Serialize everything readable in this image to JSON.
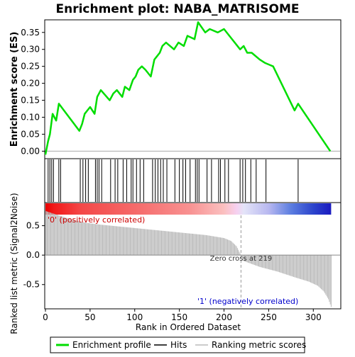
{
  "title": "Enrichment plot: NABA_MATRISOME",
  "colors": {
    "es_line": "#00dd00",
    "hits": "#000000",
    "metric_fill": "#bbbbbb",
    "zero_cross_line": "#999999",
    "pos_label": "#cc0000",
    "neg_label": "#0000cc"
  },
  "chart_data": [
    {
      "type": "line",
      "panel": "enrichment-profile",
      "ylabel": "Enrichment score (ES)",
      "xlim": [
        0,
        330
      ],
      "ylim": [
        -0.02,
        0.385
      ],
      "yticks": [
        0.0,
        0.05,
        0.1,
        0.15,
        0.2,
        0.25,
        0.3,
        0.35
      ],
      "ytick_labels": [
        "0.00",
        "0.05",
        "0.10",
        "0.15",
        "0.20",
        "0.25",
        "0.30",
        "0.35"
      ],
      "grid": false,
      "series": [
        {
          "name": "Enrichment profile",
          "x": [
            0,
            3,
            5,
            8,
            12,
            15,
            38,
            41,
            44,
            47,
            50,
            55,
            58,
            62,
            72,
            76,
            80,
            86,
            89,
            94,
            98,
            101,
            104,
            108,
            112,
            118,
            122,
            125,
            128,
            131,
            135,
            144,
            149,
            155,
            159,
            167,
            171,
            179,
            184,
            193,
            200,
            206,
            218,
            222,
            226,
            231,
            240,
            246,
            255,
            279,
            283,
            319
          ],
          "y": [
            -0.01,
            0.03,
            0.05,
            0.11,
            0.09,
            0.14,
            0.06,
            0.08,
            0.11,
            0.12,
            0.13,
            0.11,
            0.16,
            0.18,
            0.15,
            0.17,
            0.18,
            0.16,
            0.19,
            0.18,
            0.21,
            0.22,
            0.24,
            0.25,
            0.24,
            0.22,
            0.27,
            0.28,
            0.29,
            0.31,
            0.32,
            0.3,
            0.32,
            0.31,
            0.34,
            0.33,
            0.38,
            0.35,
            0.36,
            0.35,
            0.36,
            0.34,
            0.3,
            0.31,
            0.29,
            0.29,
            0.27,
            0.26,
            0.25,
            0.12,
            0.14,
            0.0
          ]
        }
      ]
    },
    {
      "type": "scatter",
      "panel": "hits",
      "xlim": [
        0,
        330
      ],
      "series": [
        {
          "name": "Hits",
          "x": [
            3,
            5,
            7,
            9,
            15,
            17,
            39,
            42,
            45,
            48,
            56,
            58,
            60,
            63,
            73,
            78,
            81,
            87,
            91,
            96,
            98,
            102,
            106,
            110,
            120,
            123,
            126,
            129,
            132,
            136,
            145,
            150,
            154,
            157,
            162,
            168,
            170,
            172,
            181,
            186,
            194,
            196,
            201,
            205,
            218,
            221,
            224,
            230,
            236,
            247,
            283
          ]
        }
      ]
    },
    {
      "type": "area",
      "panel": "ranked-list",
      "xlabel": "Rank in Ordered Dataset",
      "ylabel": "Ranked list metric (Signal2Noise)",
      "xlim": [
        0,
        330
      ],
      "ylim": [
        -0.9,
        0.88
      ],
      "xticks": [
        0,
        50,
        100,
        150,
        200,
        250,
        300
      ],
      "yticks": [
        -0.5,
        0.0,
        0.5
      ],
      "ytick_labels": [
        "-0.5",
        "0.0",
        "0.5"
      ],
      "series": [
        {
          "name": "Ranking metric scores",
          "x": [
            0,
            10,
            20,
            30,
            45,
            60,
            80,
            100,
            120,
            140,
            160,
            180,
            200,
            208,
            214,
            219,
            222,
            240,
            260,
            280,
            295,
            305,
            312,
            317,
            320
          ],
          "y": [
            0.75,
            0.7,
            0.65,
            0.6,
            0.55,
            0.52,
            0.49,
            0.46,
            0.43,
            0.4,
            0.37,
            0.34,
            0.29,
            0.24,
            0.15,
            0.0,
            -0.1,
            -0.2,
            -0.28,
            -0.38,
            -0.45,
            -0.52,
            -0.62,
            -0.75,
            -0.88
          ]
        }
      ],
      "annotations": {
        "zero_cross_rank": 219,
        "zero_cross_label": "Zero cross at 219",
        "positive_label": "'0' (positively correlated)",
        "negative_label": "'1' (negatively correlated)"
      },
      "heatmap_stops": [
        {
          "x": 0,
          "color": "#e80000"
        },
        {
          "x": 10,
          "color": "#f21a1a"
        },
        {
          "x": 40,
          "color": "#f44848"
        },
        {
          "x": 100,
          "color": "#f56a6a"
        },
        {
          "x": 160,
          "color": "#f89090"
        },
        {
          "x": 200,
          "color": "#fbc0c0"
        },
        {
          "x": 214,
          "color": "#f6d0f0"
        },
        {
          "x": 222,
          "color": "#e4e4f8"
        },
        {
          "x": 250,
          "color": "#b8b8f0"
        },
        {
          "x": 275,
          "color": "#5c7ee0"
        },
        {
          "x": 300,
          "color": "#2c44cc"
        },
        {
          "x": 320,
          "color": "#1a1ac0"
        }
      ]
    }
  ],
  "legend": [
    {
      "key": "enrichment",
      "label": "Enrichment profile"
    },
    {
      "key": "hits",
      "label": "Hits"
    },
    {
      "key": "metric",
      "label": "Ranking metric scores"
    }
  ]
}
